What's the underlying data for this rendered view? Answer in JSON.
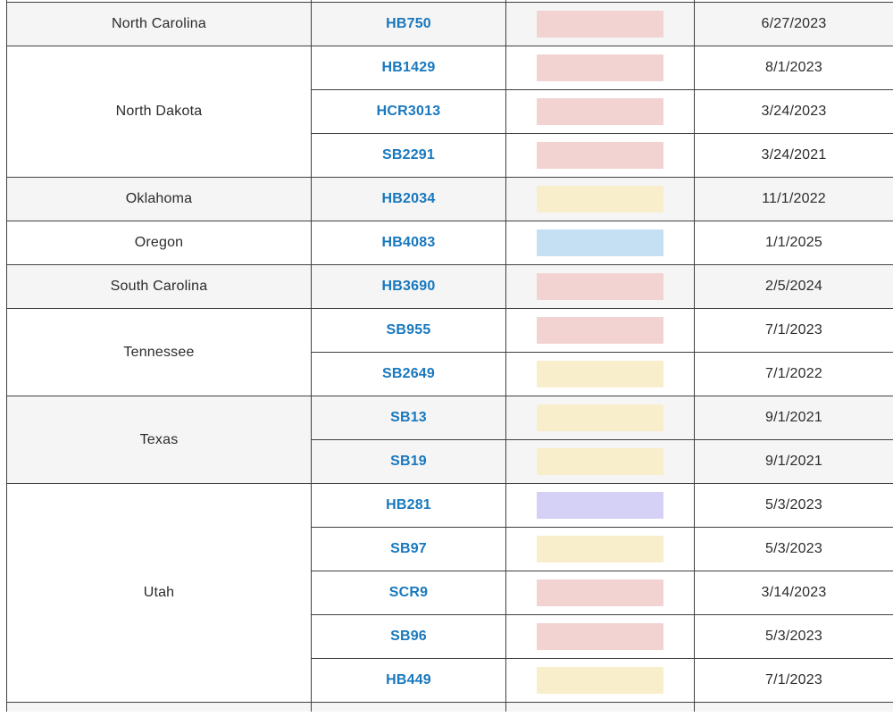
{
  "table": {
    "description": "State legislation tracker table (cropped view)",
    "columns": [
      "state",
      "bill",
      "status",
      "effective_date"
    ],
    "status_colors": {
      "red": "#f2d3d1",
      "yellow": "#f9eecb",
      "blue": "#c5e0f3",
      "purple": "#d5d0f6"
    },
    "group_shades": {
      "gray": "#f5f5f5",
      "white": "#ffffff"
    },
    "border_color": "#404040",
    "link_color": "#1878be",
    "groups": [
      {
        "state": "North Carolina",
        "shade": "gray",
        "rows": [
          {
            "bill": "HB750",
            "status": "red",
            "date": "6/27/2023"
          }
        ]
      },
      {
        "state": "North Dakota",
        "shade": "white",
        "rows": [
          {
            "bill": "HB1429",
            "status": "red",
            "date": "8/1/2023"
          },
          {
            "bill": "HCR3013",
            "status": "red",
            "date": "3/24/2023"
          },
          {
            "bill": "SB2291",
            "status": "red",
            "date": "3/24/2021"
          }
        ]
      },
      {
        "state": "Oklahoma",
        "shade": "gray",
        "rows": [
          {
            "bill": "HB2034",
            "status": "yellow",
            "date": "11/1/2022"
          }
        ]
      },
      {
        "state": "Oregon",
        "shade": "white",
        "rows": [
          {
            "bill": "HB4083",
            "status": "blue",
            "date": "1/1/2025"
          }
        ]
      },
      {
        "state": "South Carolina",
        "shade": "gray",
        "rows": [
          {
            "bill": "HB3690",
            "status": "red",
            "date": "2/5/2024"
          }
        ]
      },
      {
        "state": "Tennessee",
        "shade": "white",
        "rows": [
          {
            "bill": "SB955",
            "status": "red",
            "date": "7/1/2023"
          },
          {
            "bill": "SB2649",
            "status": "yellow",
            "date": "7/1/2022"
          }
        ]
      },
      {
        "state": "Texas",
        "shade": "gray",
        "rows": [
          {
            "bill": "SB13",
            "status": "yellow",
            "date": "9/1/2021"
          },
          {
            "bill": "SB19",
            "status": "yellow",
            "date": "9/1/2021"
          }
        ]
      },
      {
        "state": "Utah",
        "shade": "white",
        "rows": [
          {
            "bill": "HB281",
            "status": "purple",
            "date": "5/3/2023"
          },
          {
            "bill": "SB97",
            "status": "yellow",
            "date": "5/3/2023"
          },
          {
            "bill": "SCR9",
            "status": "red",
            "date": "3/14/2023"
          },
          {
            "bill": "SB96",
            "status": "red",
            "date": "5/3/2023"
          },
          {
            "bill": "HB449",
            "status": "yellow",
            "date": "7/1/2023"
          }
        ]
      }
    ]
  }
}
